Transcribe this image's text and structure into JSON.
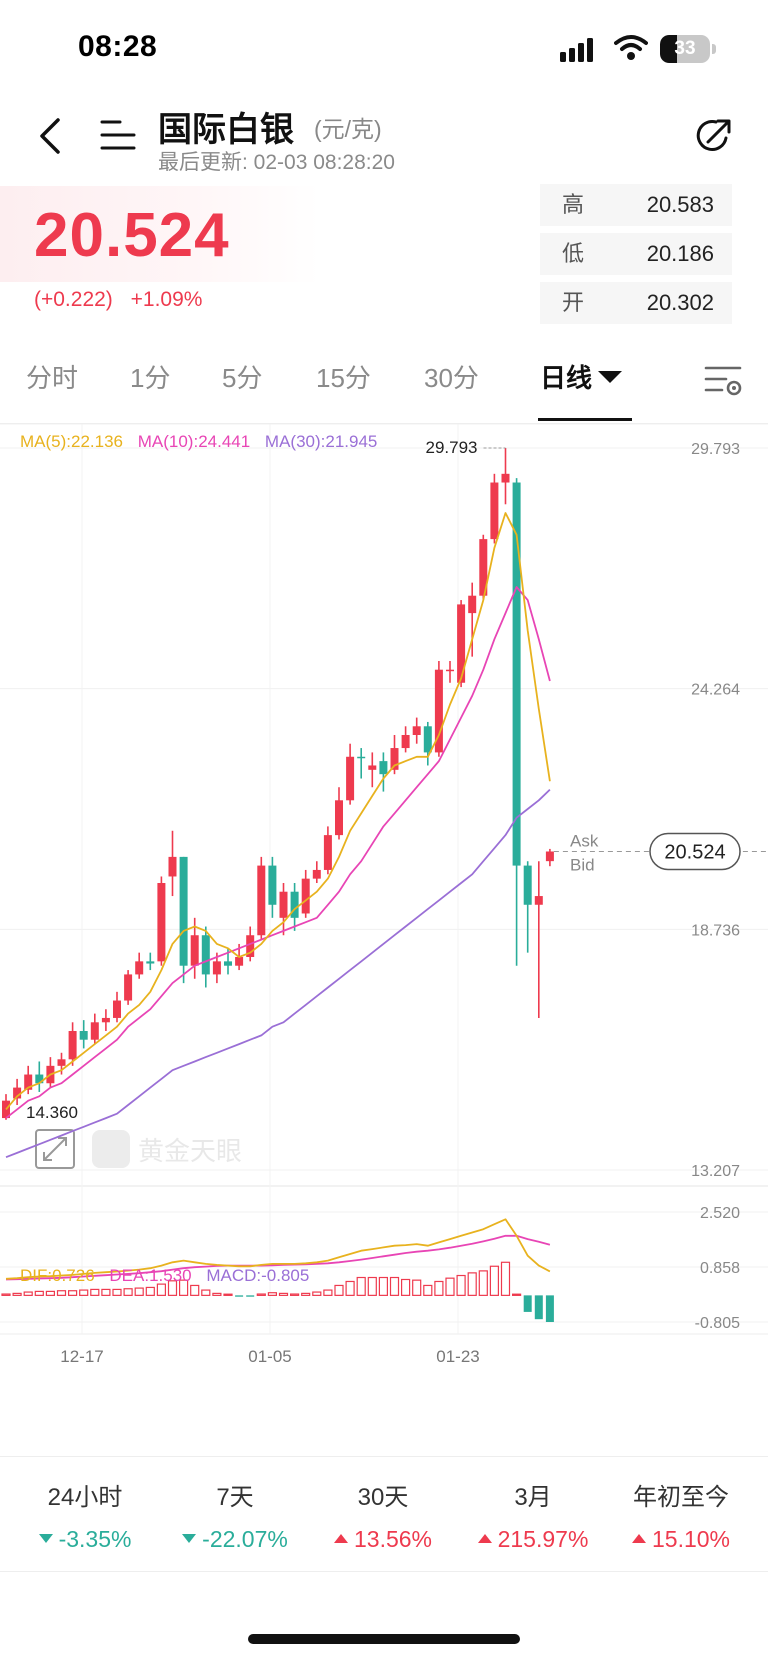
{
  "status_bar": {
    "time": "08:28",
    "battery": "33",
    "battery_level": 0.33
  },
  "header": {
    "title": "国际白银",
    "unit": "(元/克)",
    "last_update": "最后更新: 02-03 08:28:20"
  },
  "price": {
    "current": "20.524",
    "change": "(+0.222)",
    "change_pct": "+1.09%"
  },
  "stats": [
    {
      "label": "高",
      "value": "20.583"
    },
    {
      "label": "低",
      "value": "20.186"
    },
    {
      "label": "开",
      "value": "20.302"
    }
  ],
  "tabs": [
    {
      "label": "分时"
    },
    {
      "label": "1分"
    },
    {
      "label": "5分"
    },
    {
      "label": "15分"
    },
    {
      "label": "30分"
    },
    {
      "label": "日线",
      "active": true
    }
  ],
  "ma_legend": {
    "ma5": "MA(5):22.136",
    "ma10": "MA(10):24.441",
    "ma30": "MA(30):21.945"
  },
  "macd_legend": {
    "dif": "DIF:0.726",
    "dea": "DEA:1.530",
    "macd": "MACD:-0.805"
  },
  "colors": {
    "up": "#ee3a4e",
    "down": "#2aad9a",
    "ma5": "#e8b21e",
    "ma10": "#e845b5",
    "ma30": "#9a6fd6"
  },
  "chart_data": {
    "type": "candlestick",
    "main": {
      "y_ticks": [
        "29.793",
        "24.264",
        "18.736",
        "13.207"
      ],
      "ylim": [
        13.207,
        29.793
      ],
      "max_label": "29.793",
      "min_label": "14.360",
      "current_label": "20.524",
      "ask_label": "Ask",
      "bid_label": "Bid",
      "x_ticks": [
        "12-17",
        "01-05",
        "01-23"
      ],
      "candles": [
        {
          "o": 14.4,
          "c": 14.8,
          "h": 14.95,
          "l": 14.36,
          "up": true
        },
        {
          "o": 14.85,
          "c": 15.1,
          "h": 15.3,
          "l": 14.7,
          "up": true
        },
        {
          "o": 15.05,
          "c": 15.4,
          "h": 15.6,
          "l": 14.95,
          "up": true
        },
        {
          "o": 15.4,
          "c": 15.2,
          "h": 15.7,
          "l": 15.0,
          "up": false
        },
        {
          "o": 15.2,
          "c": 15.6,
          "h": 15.8,
          "l": 15.1,
          "up": true
        },
        {
          "o": 15.6,
          "c": 15.75,
          "h": 15.9,
          "l": 15.4,
          "up": true
        },
        {
          "o": 15.75,
          "c": 16.4,
          "h": 16.6,
          "l": 15.6,
          "up": true
        },
        {
          "o": 16.4,
          "c": 16.2,
          "h": 16.65,
          "l": 16.0,
          "up": false
        },
        {
          "o": 16.2,
          "c": 16.6,
          "h": 16.8,
          "l": 16.1,
          "up": true
        },
        {
          "o": 16.6,
          "c": 16.7,
          "h": 16.9,
          "l": 16.4,
          "up": true
        },
        {
          "o": 16.7,
          "c": 17.1,
          "h": 17.3,
          "l": 16.6,
          "up": true
        },
        {
          "o": 17.1,
          "c": 17.7,
          "h": 17.8,
          "l": 17.0,
          "up": true
        },
        {
          "o": 17.7,
          "c": 18.0,
          "h": 18.2,
          "l": 17.6,
          "up": true
        },
        {
          "o": 17.95,
          "c": 18.0,
          "h": 18.2,
          "l": 17.8,
          "up": false
        },
        {
          "o": 18.0,
          "c": 19.8,
          "h": 19.95,
          "l": 17.9,
          "up": true
        },
        {
          "o": 19.95,
          "c": 20.4,
          "h": 21.0,
          "l": 19.5,
          "up": true
        },
        {
          "o": 20.4,
          "c": 17.9,
          "h": 20.4,
          "l": 17.5,
          "up": false
        },
        {
          "o": 17.9,
          "c": 18.6,
          "h": 19.0,
          "l": 17.6,
          "up": true
        },
        {
          "o": 18.6,
          "c": 17.7,
          "h": 18.8,
          "l": 17.4,
          "up": false
        },
        {
          "o": 17.7,
          "c": 18.0,
          "h": 18.2,
          "l": 17.5,
          "up": true
        },
        {
          "o": 18.0,
          "c": 17.9,
          "h": 18.3,
          "l": 17.7,
          "up": false
        },
        {
          "o": 17.9,
          "c": 18.1,
          "h": 18.4,
          "l": 17.8,
          "up": true
        },
        {
          "o": 18.1,
          "c": 18.6,
          "h": 18.8,
          "l": 18.0,
          "up": true
        },
        {
          "o": 18.6,
          "c": 20.2,
          "h": 20.4,
          "l": 18.5,
          "up": true
        },
        {
          "o": 20.2,
          "c": 19.3,
          "h": 20.4,
          "l": 19.0,
          "up": false
        },
        {
          "o": 19.0,
          "c": 19.6,
          "h": 19.8,
          "l": 18.6,
          "up": true
        },
        {
          "o": 19.6,
          "c": 19.0,
          "h": 19.8,
          "l": 18.7,
          "up": false
        },
        {
          "o": 19.1,
          "c": 19.9,
          "h": 20.1,
          "l": 19.0,
          "up": true
        },
        {
          "o": 19.9,
          "c": 20.1,
          "h": 20.3,
          "l": 19.8,
          "up": true
        },
        {
          "o": 20.1,
          "c": 20.9,
          "h": 21.1,
          "l": 20.0,
          "up": true
        },
        {
          "o": 20.9,
          "c": 21.7,
          "h": 22.0,
          "l": 20.8,
          "up": true
        },
        {
          "o": 21.7,
          "c": 22.7,
          "h": 23.0,
          "l": 21.6,
          "up": true
        },
        {
          "o": 22.7,
          "c": 22.7,
          "h": 22.9,
          "l": 22.2,
          "up": false
        },
        {
          "o": 22.4,
          "c": 22.5,
          "h": 22.8,
          "l": 22.0,
          "up": true
        },
        {
          "o": 22.6,
          "c": 22.3,
          "h": 22.8,
          "l": 21.9,
          "up": false
        },
        {
          "o": 22.4,
          "c": 22.9,
          "h": 23.2,
          "l": 22.3,
          "up": true
        },
        {
          "o": 22.9,
          "c": 23.2,
          "h": 23.4,
          "l": 22.8,
          "up": true
        },
        {
          "o": 23.2,
          "c": 23.4,
          "h": 23.6,
          "l": 23.0,
          "up": true
        },
        {
          "o": 23.4,
          "c": 22.8,
          "h": 23.5,
          "l": 22.5,
          "up": false
        },
        {
          "o": 22.8,
          "c": 24.7,
          "h": 24.9,
          "l": 22.7,
          "up": true
        },
        {
          "o": 24.7,
          "c": 24.7,
          "h": 24.9,
          "l": 24.4,
          "up": true
        },
        {
          "o": 24.4,
          "c": 26.2,
          "h": 26.3,
          "l": 24.3,
          "up": true
        },
        {
          "o": 26.0,
          "c": 26.4,
          "h": 26.7,
          "l": 25.0,
          "up": true
        },
        {
          "o": 26.4,
          "c": 27.7,
          "h": 27.8,
          "l": 26.3,
          "up": true
        },
        {
          "o": 27.7,
          "c": 29.0,
          "h": 29.2,
          "l": 27.6,
          "up": true
        },
        {
          "o": 29.0,
          "c": 29.2,
          "h": 29.793,
          "l": 28.5,
          "up": true
        },
        {
          "o": 29.0,
          "c": 20.2,
          "h": 29.1,
          "l": 17.9,
          "up": false
        },
        {
          "o": 20.2,
          "c": 19.3,
          "h": 20.3,
          "l": 18.2,
          "up": false
        },
        {
          "o": 19.3,
          "c": 19.5,
          "h": 20.3,
          "l": 16.7,
          "up": true
        },
        {
          "o": 20.302,
          "c": 20.524,
          "h": 20.583,
          "l": 20.186,
          "up": true
        }
      ],
      "ma5": [
        14.6,
        14.9,
        15.1,
        15.2,
        15.4,
        15.5,
        15.7,
        15.9,
        16.1,
        16.3,
        16.5,
        16.8,
        17.0,
        17.3,
        17.8,
        18.4,
        18.7,
        18.8,
        18.7,
        18.4,
        18.3,
        18.1,
        18.2,
        18.4,
        18.7,
        18.9,
        19.2,
        19.4,
        19.6,
        19.9,
        20.4,
        21.0,
        21.4,
        21.8,
        22.2,
        22.5,
        22.6,
        22.7,
        22.7,
        23.2,
        23.9,
        24.5,
        25.4,
        26.3,
        27.5,
        28.3,
        27.8,
        25.6,
        23.8,
        22.136
      ],
      "ma10": [
        14.4,
        14.6,
        14.8,
        14.9,
        15.1,
        15.2,
        15.4,
        15.6,
        15.8,
        16.0,
        16.2,
        16.5,
        16.7,
        16.9,
        17.2,
        17.5,
        17.7,
        17.9,
        18.0,
        18.1,
        18.2,
        18.3,
        18.4,
        18.5,
        18.6,
        18.7,
        18.8,
        18.9,
        19.0,
        19.3,
        19.6,
        20.0,
        20.3,
        20.7,
        21.1,
        21.4,
        21.7,
        22.0,
        22.3,
        22.6,
        23.1,
        23.6,
        24.1,
        24.7,
        25.4,
        26.0,
        26.6,
        26.3,
        25.4,
        24.441
      ],
      "ma30": [
        13.5,
        13.6,
        13.7,
        13.8,
        13.9,
        14.0,
        14.1,
        14.2,
        14.3,
        14.4,
        14.5,
        14.7,
        14.9,
        15.1,
        15.3,
        15.5,
        15.6,
        15.7,
        15.8,
        15.9,
        16.0,
        16.1,
        16.2,
        16.3,
        16.5,
        16.6,
        16.8,
        17.0,
        17.2,
        17.4,
        17.6,
        17.8,
        18.0,
        18.2,
        18.4,
        18.6,
        18.8,
        19.0,
        19.2,
        19.4,
        19.6,
        19.8,
        20.0,
        20.3,
        20.6,
        20.9,
        21.3,
        21.5,
        21.7,
        21.945
      ]
    },
    "macd": {
      "y_ticks": [
        "2.520",
        "0.858",
        "-0.805"
      ],
      "ylim": [
        -0.805,
        2.52
      ],
      "dif": [
        0.5,
        0.52,
        0.55,
        0.57,
        0.58,
        0.6,
        0.62,
        0.65,
        0.68,
        0.7,
        0.72,
        0.75,
        0.78,
        0.82,
        0.9,
        1.0,
        1.05,
        1.0,
        0.95,
        0.92,
        0.9,
        0.88,
        0.88,
        0.92,
        0.95,
        0.95,
        0.95,
        0.97,
        1.0,
        1.05,
        1.15,
        1.25,
        1.35,
        1.4,
        1.45,
        1.5,
        1.52,
        1.55,
        1.5,
        1.6,
        1.7,
        1.8,
        1.9,
        2.0,
        2.15,
        2.3,
        1.8,
        1.2,
        0.9,
        0.726
      ],
      "dea": [
        0.48,
        0.49,
        0.5,
        0.51,
        0.52,
        0.53,
        0.55,
        0.57,
        0.59,
        0.61,
        0.63,
        0.65,
        0.67,
        0.7,
        0.73,
        0.78,
        0.82,
        0.85,
        0.87,
        0.89,
        0.9,
        0.9,
        0.9,
        0.9,
        0.91,
        0.92,
        0.93,
        0.94,
        0.95,
        0.97,
        1.0,
        1.04,
        1.08,
        1.13,
        1.18,
        1.23,
        1.28,
        1.32,
        1.35,
        1.39,
        1.44,
        1.5,
        1.56,
        1.63,
        1.71,
        1.8,
        1.8,
        1.7,
        1.62,
        1.53
      ],
      "macd": [
        0.04,
        0.06,
        0.1,
        0.12,
        0.12,
        0.14,
        0.14,
        0.16,
        0.18,
        0.18,
        0.18,
        0.2,
        0.22,
        0.24,
        0.34,
        0.44,
        0.46,
        0.3,
        0.16,
        0.06,
        0.0,
        -0.04,
        -0.04,
        0.04,
        0.08,
        0.06,
        0.04,
        0.06,
        0.1,
        0.16,
        0.3,
        0.42,
        0.54,
        0.54,
        0.54,
        0.54,
        0.48,
        0.46,
        0.3,
        0.42,
        0.52,
        0.6,
        0.68,
        0.74,
        0.88,
        1.0,
        0.0,
        -0.5,
        -0.72,
        -0.805
      ]
    }
  },
  "performance": [
    {
      "label": "24小时",
      "value": "-3.35%",
      "dir": "down"
    },
    {
      "label": "7天",
      "value": "-22.07%",
      "dir": "down"
    },
    {
      "label": "30天",
      "value": "13.56%",
      "dir": "up"
    },
    {
      "label": "3月",
      "value": "215.97%",
      "dir": "up"
    },
    {
      "label": "年初至今",
      "value": "15.10%",
      "dir": "up"
    }
  ],
  "watermark": "黄金天眼"
}
